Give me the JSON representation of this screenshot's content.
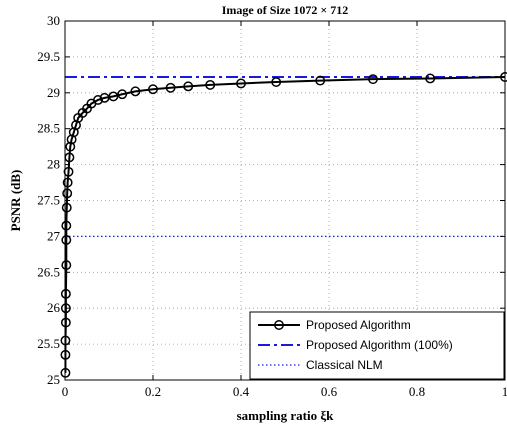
{
  "chart_data": {
    "type": "line",
    "title": "Image of Size 1072 × 712",
    "xlabel": "sampling ratio ξk",
    "ylabel": "PSNR (dB)",
    "xlim": [
      0,
      1
    ],
    "ylim": [
      25,
      30
    ],
    "xticks": [
      0,
      0.2,
      0.4,
      0.6,
      0.8,
      1
    ],
    "xtick_labels": [
      "0",
      "0.2",
      "0.4",
      "0.6",
      "0.8",
      "1"
    ],
    "yticks": [
      25,
      25.5,
      26,
      26.5,
      27,
      27.5,
      28,
      28.5,
      29,
      29.5,
      30
    ],
    "ytick_labels": [
      "25",
      "25.5",
      "26",
      "26.5",
      "27",
      "27.5",
      "28",
      "28.5",
      "29",
      "29.5",
      "30"
    ],
    "grid": true,
    "legend_position": "bottom-right",
    "series": [
      {
        "name": "Proposed Algorithm",
        "style": "solid-circle-markers",
        "color": "#000000",
        "x": [
          0.001,
          0.001,
          0.001,
          0.002,
          0.002,
          0.002,
          0.003,
          0.003,
          0.003,
          0.004,
          0.005,
          0.006,
          0.008,
          0.01,
          0.012,
          0.015,
          0.02,
          0.025,
          0.03,
          0.04,
          0.05,
          0.06,
          0.075,
          0.09,
          0.11,
          0.13,
          0.16,
          0.2,
          0.24,
          0.28,
          0.33,
          0.4,
          0.48,
          0.58,
          0.7,
          0.83,
          1.0
        ],
        "y": [
          25.1,
          25.35,
          25.55,
          25.8,
          26.0,
          26.2,
          26.6,
          26.95,
          27.15,
          27.4,
          27.6,
          27.75,
          27.9,
          28.1,
          28.25,
          28.35,
          28.45,
          28.55,
          28.65,
          28.72,
          28.78,
          28.85,
          28.9,
          28.93,
          28.95,
          28.98,
          29.02,
          29.05,
          29.07,
          29.09,
          29.11,
          29.13,
          29.15,
          29.17,
          29.19,
          29.2,
          29.22
        ]
      },
      {
        "name": "Proposed Algorithm (100%)",
        "style": "dashdot",
        "color": "#1a1adc",
        "value": 29.22
      },
      {
        "name": "Classical NLM",
        "style": "dotted",
        "color": "#1a1adc",
        "value": 27.0
      }
    ]
  }
}
